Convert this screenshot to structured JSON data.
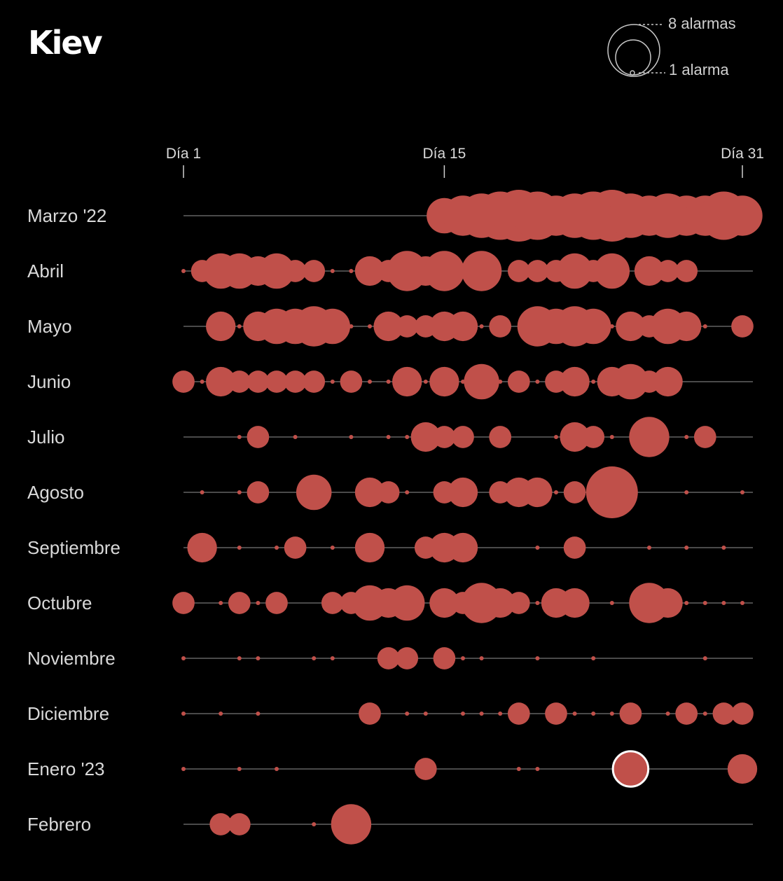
{
  "title": "Kiev",
  "legend": {
    "max_label": "8 alarmas",
    "min_label": "1 alarma",
    "max_value": 8,
    "min_value": 1
  },
  "colors": {
    "bubble": "#c0504a",
    "line": "#4a4a4a",
    "highlight_stroke": "#ffffff"
  },
  "chart_data": {
    "type": "bubble-timeline",
    "title": "Kiev",
    "x_ticks": [
      {
        "day": 1,
        "label": "Día 1"
      },
      {
        "day": 15,
        "label": "Día 15"
      },
      {
        "day": 31,
        "label": "Día 31"
      }
    ],
    "size_legend": [
      "8 alarmas",
      "1 alarma"
    ],
    "rows": [
      {
        "label": "Marzo '22",
        "days_in_month": 31,
        "start_day": 15,
        "alarms": [
          [
            15,
            4
          ],
          [
            16,
            5
          ],
          [
            17,
            6
          ],
          [
            18,
            7
          ],
          [
            19,
            8
          ],
          [
            20,
            7
          ],
          [
            21,
            5
          ],
          [
            22,
            6
          ],
          [
            23,
            7
          ],
          [
            24,
            8
          ],
          [
            25,
            6
          ],
          [
            26,
            5
          ],
          [
            27,
            6
          ],
          [
            28,
            5
          ],
          [
            29,
            5
          ],
          [
            30,
            7
          ],
          [
            31,
            5
          ]
        ]
      },
      {
        "label": "Abril",
        "days_in_month": 30,
        "alarms": [
          [
            1,
            1
          ],
          [
            2,
            2
          ],
          [
            3,
            4
          ],
          [
            4,
            4
          ],
          [
            5,
            3
          ],
          [
            6,
            4
          ],
          [
            7,
            2
          ],
          [
            8,
            2
          ],
          [
            9,
            1
          ],
          [
            10,
            1
          ],
          [
            11,
            3
          ],
          [
            12,
            2
          ],
          [
            13,
            5
          ],
          [
            14,
            3
          ],
          [
            15,
            5
          ],
          [
            17,
            5
          ],
          [
            19,
            2
          ],
          [
            20,
            2
          ],
          [
            21,
            2
          ],
          [
            22,
            4
          ],
          [
            23,
            2
          ],
          [
            24,
            4
          ],
          [
            26,
            3
          ],
          [
            27,
            2
          ],
          [
            28,
            2
          ]
        ]
      },
      {
        "label": "Mayo",
        "days_in_month": 31,
        "alarms": [
          [
            3,
            3
          ],
          [
            4,
            1
          ],
          [
            5,
            3
          ],
          [
            6,
            4
          ],
          [
            7,
            4
          ],
          [
            8,
            5
          ],
          [
            9,
            4
          ],
          [
            10,
            1
          ],
          [
            11,
            1
          ],
          [
            12,
            3
          ],
          [
            13,
            2
          ],
          [
            14,
            2
          ],
          [
            15,
            3
          ],
          [
            16,
            3
          ],
          [
            17,
            1
          ],
          [
            18,
            2
          ],
          [
            20,
            5
          ],
          [
            21,
            4
          ],
          [
            22,
            5
          ],
          [
            23,
            4
          ],
          [
            24,
            1
          ],
          [
            25,
            3
          ],
          [
            26,
            2
          ],
          [
            27,
            4
          ],
          [
            28,
            3
          ],
          [
            29,
            1
          ],
          [
            31,
            2
          ]
        ]
      },
      {
        "label": "Junio",
        "days_in_month": 30,
        "alarms": [
          [
            1,
            2
          ],
          [
            2,
            1
          ],
          [
            3,
            3
          ],
          [
            4,
            2
          ],
          [
            5,
            2
          ],
          [
            6,
            2
          ],
          [
            7,
            2
          ],
          [
            8,
            2
          ],
          [
            9,
            1
          ],
          [
            10,
            2
          ],
          [
            11,
            1
          ],
          [
            12,
            1
          ],
          [
            13,
            3
          ],
          [
            14,
            1
          ],
          [
            15,
            3
          ],
          [
            16,
            1
          ],
          [
            17,
            4
          ],
          [
            18,
            1
          ],
          [
            19,
            2
          ],
          [
            20,
            1
          ],
          [
            21,
            2
          ],
          [
            22,
            3
          ],
          [
            23,
            1
          ],
          [
            24,
            3
          ],
          [
            25,
            4
          ],
          [
            26,
            2
          ],
          [
            27,
            3
          ]
        ]
      },
      {
        "label": "Julio",
        "days_in_month": 31,
        "alarms": [
          [
            4,
            1
          ],
          [
            5,
            2
          ],
          [
            7,
            1
          ],
          [
            10,
            1
          ],
          [
            12,
            1
          ],
          [
            13,
            1
          ],
          [
            14,
            3
          ],
          [
            15,
            2
          ],
          [
            16,
            2
          ],
          [
            18,
            2
          ],
          [
            21,
            1
          ],
          [
            22,
            3
          ],
          [
            23,
            2
          ],
          [
            24,
            1
          ],
          [
            26,
            5
          ],
          [
            28,
            1
          ],
          [
            29,
            2
          ]
        ]
      },
      {
        "label": "Agosto",
        "days_in_month": 31,
        "alarms": [
          [
            2,
            1
          ],
          [
            4,
            1
          ],
          [
            5,
            2
          ],
          [
            8,
            4
          ],
          [
            11,
            3
          ],
          [
            12,
            2
          ],
          [
            13,
            1
          ],
          [
            15,
            2
          ],
          [
            16,
            3
          ],
          [
            18,
            2
          ],
          [
            19,
            3
          ],
          [
            20,
            3
          ],
          [
            21,
            1
          ],
          [
            22,
            2
          ],
          [
            24,
            8
          ],
          [
            28,
            1
          ],
          [
            31,
            1
          ]
        ]
      },
      {
        "label": "Septiembre",
        "days_in_month": 30,
        "alarms": [
          [
            2,
            3
          ],
          [
            4,
            1
          ],
          [
            6,
            1
          ],
          [
            7,
            2
          ],
          [
            9,
            1
          ],
          [
            11,
            3
          ],
          [
            14,
            2
          ],
          [
            15,
            3
          ],
          [
            16,
            3
          ],
          [
            20,
            1
          ],
          [
            22,
            2
          ],
          [
            26,
            1
          ],
          [
            28,
            1
          ],
          [
            30,
            1
          ]
        ]
      },
      {
        "label": "Octubre",
        "days_in_month": 31,
        "alarms": [
          [
            1,
            2
          ],
          [
            3,
            1
          ],
          [
            4,
            2
          ],
          [
            5,
            1
          ],
          [
            6,
            2
          ],
          [
            9,
            2
          ],
          [
            10,
            2
          ],
          [
            11,
            4
          ],
          [
            12,
            3
          ],
          [
            13,
            4
          ],
          [
            15,
            3
          ],
          [
            16,
            2
          ],
          [
            17,
            5
          ],
          [
            18,
            3
          ],
          [
            19,
            2
          ],
          [
            20,
            1
          ],
          [
            21,
            3
          ],
          [
            22,
            3
          ],
          [
            24,
            1
          ],
          [
            26,
            5
          ],
          [
            27,
            3
          ],
          [
            28,
            1
          ],
          [
            29,
            1
          ],
          [
            30,
            1
          ],
          [
            31,
            1
          ]
        ]
      },
      {
        "label": "Noviembre",
        "days_in_month": 30,
        "alarms": [
          [
            1,
            1
          ],
          [
            4,
            1
          ],
          [
            5,
            1
          ],
          [
            8,
            1
          ],
          [
            9,
            1
          ],
          [
            12,
            2
          ],
          [
            13,
            2
          ],
          [
            15,
            2
          ],
          [
            16,
            1
          ],
          [
            17,
            1
          ],
          [
            20,
            1
          ],
          [
            23,
            1
          ],
          [
            29,
            1
          ]
        ]
      },
      {
        "label": "Diciembre",
        "days_in_month": 31,
        "alarms": [
          [
            1,
            1
          ],
          [
            3,
            1
          ],
          [
            5,
            1
          ],
          [
            11,
            2
          ],
          [
            13,
            1
          ],
          [
            14,
            1
          ],
          [
            16,
            1
          ],
          [
            17,
            1
          ],
          [
            18,
            1
          ],
          [
            19,
            2
          ],
          [
            21,
            2
          ],
          [
            22,
            1
          ],
          [
            23,
            1
          ],
          [
            24,
            1
          ],
          [
            25,
            2
          ],
          [
            27,
            1
          ],
          [
            28,
            2
          ],
          [
            29,
            1
          ],
          [
            30,
            2
          ],
          [
            31,
            2
          ]
        ]
      },
      {
        "label": "Enero '23",
        "days_in_month": 31,
        "alarms": [
          [
            1,
            1
          ],
          [
            4,
            1
          ],
          [
            6,
            1
          ],
          [
            14,
            2
          ],
          [
            19,
            1
          ],
          [
            20,
            1
          ],
          [
            25,
            4
          ],
          [
            31,
            3
          ]
        ],
        "highlight_day": 25
      },
      {
        "label": "Febrero",
        "days_in_month": 28,
        "alarms": [
          [
            3,
            2
          ],
          [
            4,
            2
          ],
          [
            8,
            1
          ],
          [
            10,
            5
          ]
        ]
      }
    ]
  }
}
